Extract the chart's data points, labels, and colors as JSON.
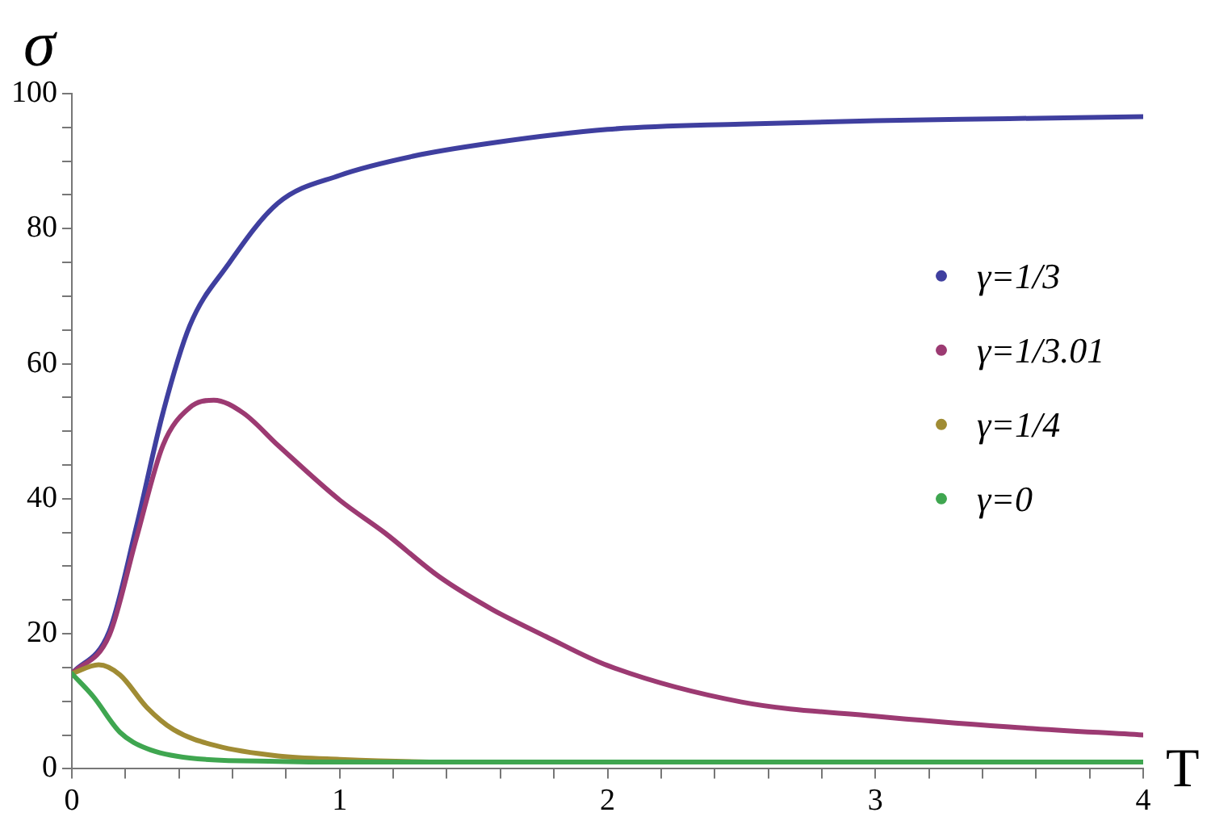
{
  "chart_data": {
    "type": "line",
    "xlabel": "T",
    "ylabel": "σ",
    "xlim": [
      0,
      4
    ],
    "ylim": [
      0,
      100
    ],
    "xticks": [
      0,
      {
        "value": 0.2,
        "label": null
      },
      {
        "value": 0.4,
        "label": null
      },
      {
        "value": 0.6,
        "label": null
      },
      {
        "value": 0.8,
        "label": null
      },
      1,
      {
        "value": 1.2,
        "label": null
      },
      {
        "value": 1.4,
        "label": null
      },
      {
        "value": 1.6,
        "label": null
      },
      {
        "value": 1.8,
        "label": null
      },
      2,
      {
        "value": 2.2,
        "label": null
      },
      {
        "value": 2.4,
        "label": null
      },
      {
        "value": 2.6,
        "label": null
      },
      {
        "value": 2.8,
        "label": null
      },
      3,
      {
        "value": 3.2,
        "label": null
      },
      {
        "value": 3.4,
        "label": null
      },
      {
        "value": 3.6,
        "label": null
      },
      {
        "value": 3.8,
        "label": null
      },
      4
    ],
    "yticks": [
      0,
      {
        "value": 5,
        "label": null
      },
      {
        "value": 10,
        "label": null
      },
      {
        "value": 15,
        "label": null
      },
      20,
      {
        "value": 25,
        "label": null
      },
      {
        "value": 30,
        "label": null
      },
      {
        "value": 35,
        "label": null
      },
      40,
      {
        "value": 45,
        "label": null
      },
      {
        "value": 50,
        "label": null
      },
      {
        "value": 55,
        "label": null
      },
      60,
      {
        "value": 65,
        "label": null
      },
      {
        "value": 70,
        "label": null
      },
      {
        "value": 75,
        "label": null
      },
      80,
      {
        "value": 85,
        "label": null
      },
      {
        "value": 90,
        "label": null
      },
      {
        "value": 95,
        "label": null
      },
      100
    ],
    "legend": "right",
    "marker": "none",
    "line_style": "solid",
    "series": [
      {
        "name": "γ=1/3",
        "color": "#3f3f9f",
        "x": [
          0,
          0.14,
          0.24,
          0.34,
          0.44,
          0.58,
          0.77,
          1,
          1.27,
          1.57,
          2,
          2.5,
          3,
          3.5,
          4
        ],
        "values": [
          14.1,
          20.4,
          35.7,
          52.7,
          65.6,
          74.5,
          83.8,
          87.9,
          90.7,
          92.7,
          94.7,
          95.5,
          96,
          96.3,
          96.6
        ]
      },
      {
        "name": "γ=1/3.01",
        "color": "#9c3a72",
        "x": [
          0,
          0.14,
          0.24,
          0.34,
          0.44,
          0.53,
          0.64,
          0.77,
          1,
          1.17,
          1.37,
          1.57,
          1.77,
          2,
          2.5,
          3,
          3.5,
          4
        ],
        "values": [
          14.1,
          19.8,
          34,
          47.9,
          53.5,
          54.6,
          52.7,
          47.9,
          39.8,
          34.9,
          28.5,
          23.6,
          19.6,
          15.3,
          9.9,
          7.8,
          6.2,
          5
        ]
      },
      {
        "name": "γ=1/4",
        "color": "#a08c34",
        "x": [
          0,
          0.1,
          0.18,
          0.28,
          0.38,
          0.54,
          0.77,
          1,
          1.4,
          2
        ],
        "values": [
          14.1,
          15.4,
          13.9,
          9.1,
          5.8,
          3.4,
          1.9,
          1.4,
          1,
          1
        ]
      },
      {
        "name": "γ=0",
        "color": "#3fa650",
        "x": [
          0,
          0.08,
          0.18,
          0.28,
          0.44,
          0.77,
          1,
          2,
          3,
          4
        ],
        "values": [
          14.1,
          10.7,
          5.4,
          3,
          1.6,
          1.1,
          1,
          1,
          1,
          1
        ]
      }
    ]
  }
}
